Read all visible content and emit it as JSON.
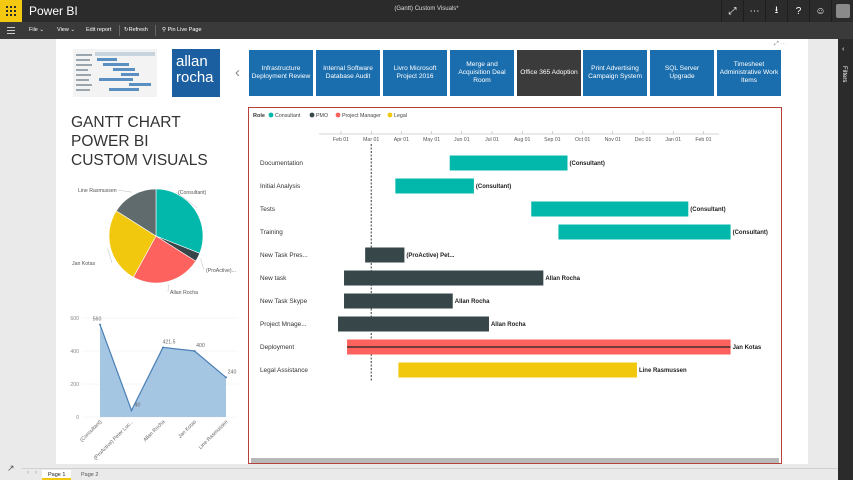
{
  "app": {
    "name": "Power BI",
    "report_title": "(Gantt) Custom Visuals*"
  },
  "menu": {
    "file": "File",
    "view": "View",
    "edit_report": "Edit report",
    "refresh": "Refresh",
    "pin_live_page": "Pin Live Page"
  },
  "filters_label": "Filters",
  "logo_text": [
    "allan",
    "rocha"
  ],
  "nav_buttons": [
    {
      "label": "Infrastructure Deployment Review",
      "active": false
    },
    {
      "label": "Internal Software Database Audit",
      "active": false
    },
    {
      "label": "Livro Microsoft Project 2016",
      "active": false
    },
    {
      "label": "Merge and Acquisition Deal Room",
      "active": false
    },
    {
      "label": "Office 365 Adoption",
      "active": true
    },
    {
      "label": "Print Advertising Campaign System",
      "active": false
    },
    {
      "label": "SQL Server Upgrade",
      "active": false
    },
    {
      "label": "Timesheet Administrative Work Items",
      "active": false
    }
  ],
  "page_title_lines": [
    "GANTT CHART",
    "POWER BI",
    "CUSTOM VISUALS"
  ],
  "pages": [
    {
      "label": "Page 1",
      "active": true
    },
    {
      "label": "Page 2",
      "active": false
    }
  ],
  "colors": {
    "consultant": "#01b8aa",
    "pmo": "#374649",
    "project_manager": "#fd625e",
    "legal": "#f2c80f",
    "nav_blue": "#1b6eae",
    "nav_active": "#3b3b3b",
    "area_fill": "#a4c6e3",
    "area_line": "#4a7fb5"
  },
  "chart_data": [
    {
      "type": "pie",
      "labels": [
        "(Consultant)",
        "(ProActive)...",
        "Allan Rocha",
        "Jan Kotas",
        "Line Rasmussen"
      ],
      "values": [
        31,
        3,
        24,
        26,
        16
      ],
      "colors": [
        "#01b8aa",
        "#374649",
        "#fd625e",
        "#f2c80f",
        "#5f6b6d"
      ]
    },
    {
      "type": "area",
      "categories": [
        "(Consultant)",
        "(ProActive) Peter Luc...",
        "Allan Rocha",
        "Jan Kotas",
        "Line Rasmussen"
      ],
      "values": [
        560,
        40,
        421.5,
        400,
        240
      ],
      "value_labels": [
        "560",
        "40",
        "421.5",
        "400",
        "240"
      ],
      "ylim": [
        0,
        600
      ],
      "yticks": [
        0,
        200,
        400,
        600
      ]
    },
    {
      "type": "gantt",
      "legend_title": "Role",
      "legend": [
        {
          "name": "Consultant",
          "color": "#01b8aa"
        },
        {
          "name": "PMO",
          "color": "#374649"
        },
        {
          "name": "Project Manager",
          "color": "#fd625e"
        },
        {
          "name": "Legal",
          "color": "#f2c80f"
        }
      ],
      "months": [
        "Feb 01",
        "Mar 01",
        "Apr 01",
        "May 01",
        "Jun 01",
        "Jul 01",
        "Aug 01",
        "Sep 01",
        "Oct 01",
        "Nov 01",
        "Dec 01",
        "Jan 01",
        "Feb 01"
      ],
      "today_marker": "Mar 01",
      "tasks": [
        {
          "name": "Documentation",
          "start": 3.6,
          "end": 7.5,
          "role": "Consultant",
          "resource": "(Consultant)"
        },
        {
          "name": "Initial Analysis",
          "start": 1.8,
          "end": 4.4,
          "role": "Consultant",
          "resource": "(Consultant)"
        },
        {
          "name": "Tests",
          "start": 6.3,
          "end": 11.5,
          "role": "Consultant",
          "resource": "(Consultant)"
        },
        {
          "name": "Training",
          "start": 7.2,
          "end": 12.9,
          "role": "Consultant",
          "resource": "(Consultant)"
        },
        {
          "name": "New Task Pres...",
          "start": 0.8,
          "end": 2.1,
          "role": "PMO",
          "resource": "(ProActive) Pet..."
        },
        {
          "name": "New task",
          "start": 0.1,
          "end": 6.7,
          "role": "PMO",
          "resource": "Allan Rocha"
        },
        {
          "name": "New Task Skype",
          "start": 0.1,
          "end": 3.7,
          "role": "PMO",
          "resource": "Allan Rocha"
        },
        {
          "name": "Project Mnage...",
          "start": -0.1,
          "end": 4.9,
          "role": "PMO",
          "resource": "Allan Rocha"
        },
        {
          "name": "Deployment",
          "start": 0.2,
          "end": 12.9,
          "role": "Project Manager",
          "resource": "Jan Kotas"
        },
        {
          "name": "Legal Assistance",
          "start": 1.9,
          "end": 9.8,
          "role": "Legal",
          "resource": "Line Rasmussen"
        }
      ]
    }
  ]
}
